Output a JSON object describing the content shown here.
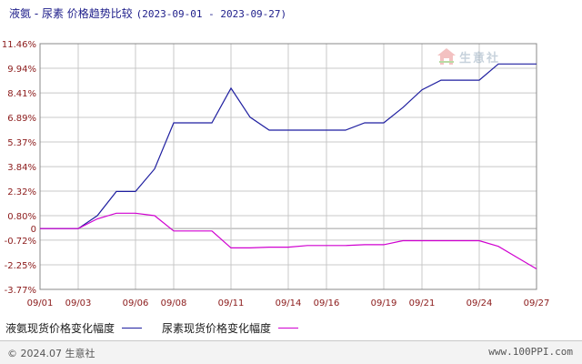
{
  "header": {
    "title": "液氨 - 尿素 价格趋势比较",
    "date_range": "(2023-09-01 - 2023-09-27)"
  },
  "legend": {
    "series1_label": "液氨现货价格变化幅度",
    "series2_label": "尿素现货价格变化幅度"
  },
  "watermark": {
    "text": "生意社"
  },
  "footer": {
    "copyright": "© 2024.07 生意社",
    "site": "www.100PPI.com"
  },
  "colors": {
    "series1": "#1f1fa0",
    "series2": "#d000d0",
    "grid": "#c8c8c8",
    "zero_line": "#a0a0a0",
    "axis_text": "#8b1a1a"
  },
  "chart_data": {
    "type": "line",
    "title": "液氨 - 尿素 价格趋势比较",
    "y_ticks": [
      "11.46%",
      "9.94%",
      "8.41%",
      "6.89%",
      "5.37%",
      "3.84%",
      "2.32%",
      "0.80%",
      "0",
      "-0.72%",
      "-2.25%",
      "-3.77%"
    ],
    "y_tick_values": [
      11.46,
      9.94,
      8.41,
      6.89,
      5.37,
      3.84,
      2.32,
      0.8,
      0,
      -0.72,
      -2.25,
      -3.77
    ],
    "ylim": [
      -3.77,
      11.46
    ],
    "x_tick_labels": [
      "09/01",
      "09/03",
      "09/06",
      "09/08",
      "09/11",
      "09/14",
      "09/16",
      "09/19",
      "09/21",
      "09/24",
      "09/27"
    ],
    "x_tick_days": [
      1,
      3,
      6,
      8,
      11,
      14,
      16,
      19,
      21,
      24,
      27
    ],
    "xlim": [
      1,
      27
    ],
    "grid": true,
    "series": [
      {
        "name": "液氨现货价格变化幅度",
        "color": "#1f1fa0",
        "x": [
          1,
          3,
          4,
          5,
          6,
          7,
          8,
          9,
          10,
          11,
          12,
          13,
          14,
          15,
          16,
          17,
          18,
          19,
          20,
          21,
          22,
          23,
          24,
          25,
          26,
          27
        ],
        "y": [
          0,
          0,
          0.8,
          2.3,
          2.3,
          3.7,
          6.55,
          6.55,
          6.55,
          8.7,
          6.9,
          6.1,
          6.1,
          6.1,
          6.1,
          6.1,
          6.55,
          6.55,
          7.5,
          8.6,
          9.2,
          9.2,
          9.2,
          10.2,
          10.2,
          10.2
        ]
      },
      {
        "name": "尿素现货价格变化幅度",
        "color": "#d000d0",
        "x": [
          1,
          3,
          4,
          5,
          6,
          7,
          8,
          9,
          10,
          11,
          12,
          13,
          14,
          15,
          16,
          17,
          18,
          19,
          20,
          21,
          22,
          23,
          24,
          25,
          26,
          27
        ],
        "y": [
          0,
          0,
          0.6,
          0.95,
          0.95,
          0.8,
          -0.15,
          -0.15,
          -0.15,
          -1.2,
          -1.2,
          -1.15,
          -1.15,
          -1.05,
          -1.05,
          -1.05,
          -1.0,
          -1.0,
          -0.75,
          -0.75,
          -0.75,
          -0.75,
          -0.75,
          -1.1,
          -1.8,
          -2.5
        ]
      }
    ]
  }
}
